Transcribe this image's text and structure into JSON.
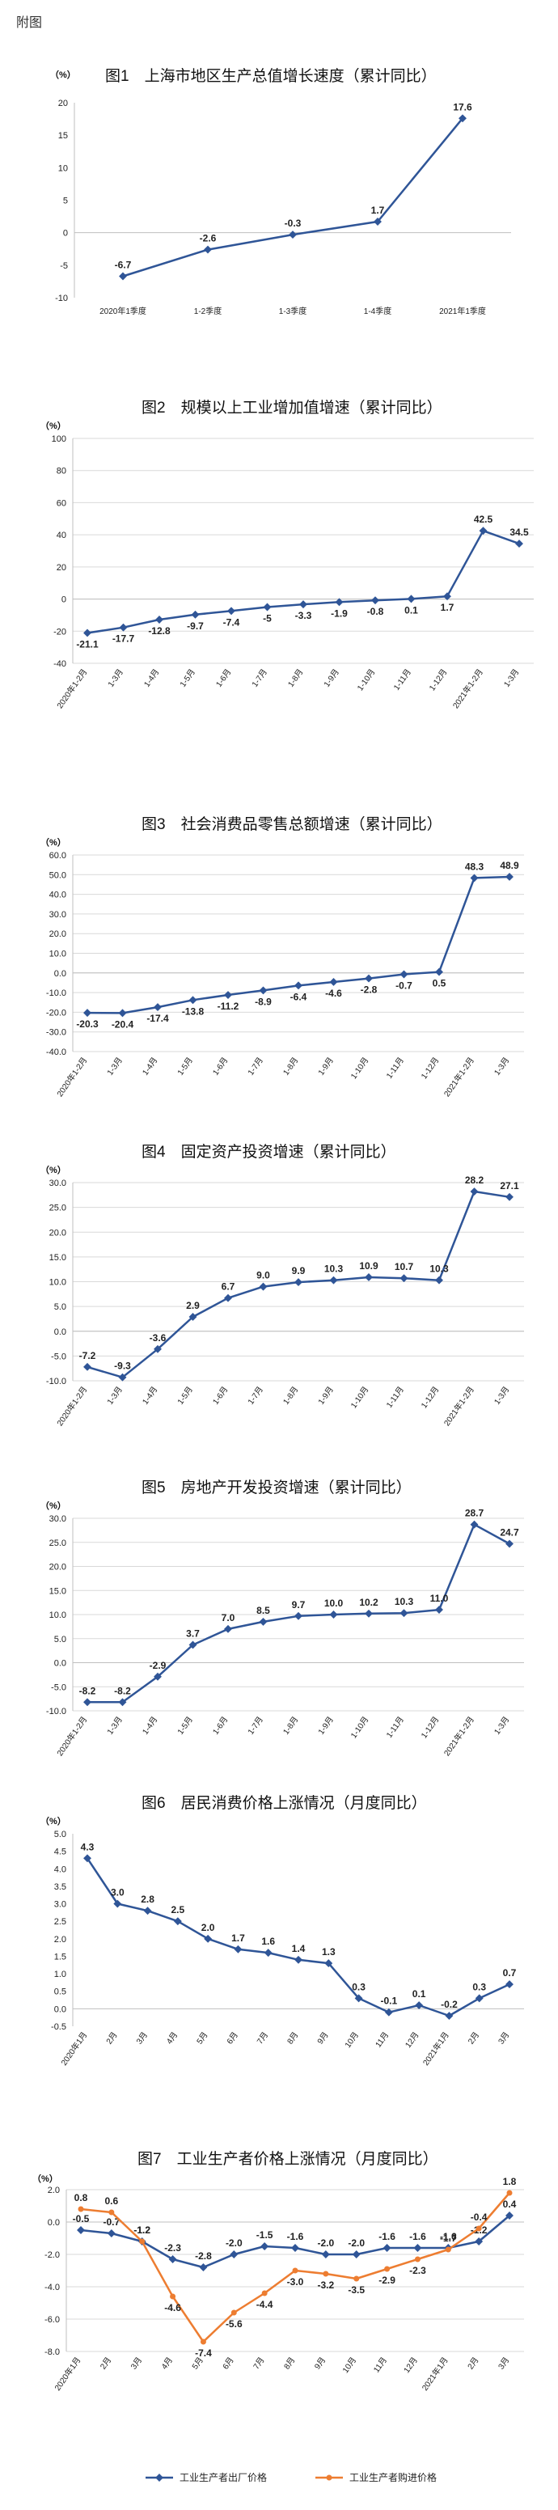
{
  "page_label": "附图",
  "colors": {
    "blue": "#2f5597",
    "orange": "#ed7d31"
  },
  "chart_data": [
    {
      "type": "line",
      "title": "图1　上海市地区生产总值增长速度（累计同比）",
      "unit": "（%）",
      "categories": [
        "2020年1季度",
        "1-2季度",
        "1-3季度",
        "1-4季度",
        "2021年1季度"
      ],
      "series": [
        {
          "values": [
            -6.7,
            -2.6,
            -0.3,
            1.7,
            17.6
          ],
          "labels": [
            "-6.7",
            "-2.6",
            "-0.3",
            "1.7",
            "17.6"
          ],
          "color": "#2f5597"
        }
      ],
      "ylim": [
        -10,
        20
      ],
      "yticks": [
        -10,
        -5,
        0,
        5,
        10,
        15,
        20
      ],
      "rotate_x": false,
      "grid": false
    },
    {
      "type": "line",
      "title": "图2　规模以上工业增加值增速（累计同比）",
      "unit": "（%）",
      "categories": [
        "2020年1-2月",
        "1-3月",
        "1-4月",
        "1-5月",
        "1-6月",
        "1-7月",
        "1-8月",
        "1-9月",
        "1-10月",
        "1-11月",
        "1-12月",
        "2021年1-2月",
        "1-3月"
      ],
      "series": [
        {
          "values": [
            -21.1,
            -17.7,
            -12.8,
            -9.7,
            -7.4,
            -5,
            -3.3,
            -1.9,
            -0.8,
            0.1,
            1.7,
            42.5,
            34.5
          ],
          "labels": [
            "-21.1",
            "-17.7",
            "-12.8",
            "-9.7",
            "-7.4",
            "-5",
            "-3.3",
            "-1.9",
            "-0.8",
            "0.1",
            "1.7",
            "42.5",
            "34.5"
          ],
          "color": "#2f5597"
        }
      ],
      "ylim": [
        -40,
        100
      ],
      "yticks": [
        -40,
        -20,
        0,
        20,
        40,
        60,
        80,
        100
      ],
      "rotate_x": true,
      "grid": true
    },
    {
      "type": "line",
      "title": "图3　社会消费品零售总额增速（累计同比）",
      "unit": "（%）",
      "categories": [
        "2020年1-2月",
        "1-3月",
        "1-4月",
        "1-5月",
        "1-6月",
        "1-7月",
        "1-8月",
        "1-9月",
        "1-10月",
        "1-11月",
        "1-12月",
        "2021年1-2月",
        "1-3月"
      ],
      "series": [
        {
          "values": [
            -20.3,
            -20.4,
            -17.4,
            -13.8,
            -11.2,
            -8.9,
            -6.4,
            -4.6,
            -2.8,
            -0.7,
            0.5,
            48.3,
            48.9
          ],
          "labels": [
            "-20.3",
            "-20.4",
            "-17.4",
            "-13.8",
            "-11.2",
            "-8.9",
            "-6.4",
            "-4.6",
            "-2.8",
            "-0.7",
            "0.5",
            "48.3",
            "48.9"
          ],
          "color": "#2f5597"
        }
      ],
      "ylim": [
        -40,
        60
      ],
      "yticks": [
        -40,
        -30,
        -20,
        -10,
        0,
        10,
        20,
        30,
        40,
        50,
        60
      ],
      "tick_decimals": 1,
      "rotate_x": true,
      "grid": true
    },
    {
      "type": "line",
      "title": "图4　固定资产投资增速（累计同比）",
      "unit": "（%）",
      "categories": [
        "2020年1-2月",
        "1-3月",
        "1-4月",
        "1-5月",
        "1-6月",
        "1-7月",
        "1-8月",
        "1-9月",
        "1-10月",
        "1-11月",
        "1-12月",
        "2021年1-2月",
        "1-3月"
      ],
      "series": [
        {
          "values": [
            -7.2,
            -9.3,
            -3.6,
            2.9,
            6.7,
            9.0,
            9.9,
            10.3,
            10.9,
            10.7,
            10.3,
            28.2,
            27.1
          ],
          "labels": [
            "-7.2",
            "-9.3",
            "-3.6",
            "2.9",
            "6.7",
            "9.0",
            "9.9",
            "10.3",
            "10.9",
            "10.7",
            "10.3",
            "28.2",
            "27.1"
          ],
          "color": "#2f5597"
        }
      ],
      "ylim": [
        -10,
        30
      ],
      "yticks": [
        -10,
        -5,
        0,
        5,
        10,
        15,
        20,
        25,
        30
      ],
      "tick_decimals": 1,
      "rotate_x": true,
      "grid": true
    },
    {
      "type": "line",
      "title": "图5　房地产开发投资增速（累计同比）",
      "unit": "（%）",
      "categories": [
        "2020年1-2月",
        "1-3月",
        "1-4月",
        "1-5月",
        "1-6月",
        "1-7月",
        "1-8月",
        "1-9月",
        "1-10月",
        "1-11月",
        "1-12月",
        "2021年1-2月",
        "1-3月"
      ],
      "series": [
        {
          "values": [
            -8.2,
            -8.2,
            -2.9,
            3.7,
            7.0,
            8.5,
            9.7,
            10.0,
            10.2,
            10.3,
            11.0,
            28.7,
            24.7
          ],
          "labels": [
            "-8.2",
            "-8.2",
            "-2.9",
            "3.7",
            "7.0",
            "8.5",
            "9.7",
            "10.0",
            "10.2",
            "10.3",
            "11.0",
            "28.7",
            "24.7"
          ],
          "color": "#2f5597"
        }
      ],
      "ylim": [
        -10,
        30
      ],
      "yticks": [
        -10,
        -5,
        0,
        5,
        10,
        15,
        20,
        25,
        30
      ],
      "tick_decimals": 1,
      "rotate_x": true,
      "grid": true
    },
    {
      "type": "line",
      "title": "图6　居民消费价格上涨情况（月度同比）",
      "unit": "（%）",
      "categories": [
        "2020年1月",
        "2月",
        "3月",
        "4月",
        "5月",
        "6月",
        "7月",
        "8月",
        "9月",
        "10月",
        "11月",
        "12月",
        "2021年1月",
        "2月",
        "3月"
      ],
      "series": [
        {
          "values": [
            4.3,
            3.0,
            2.8,
            2.5,
            2.0,
            1.7,
            1.6,
            1.4,
            1.3,
            0.3,
            -0.1,
            0.1,
            -0.2,
            0.3,
            0.7
          ],
          "labels": [
            "4.3",
            "3.0",
            "2.8",
            "2.5",
            "2.0",
            "1.7",
            "1.6",
            "1.4",
            "1.3",
            "0.3",
            "-0.1",
            "0.1",
            "-0.2",
            "0.3",
            "0.7"
          ],
          "color": "#2f5597"
        }
      ],
      "ylim": [
        -0.5,
        5.0
      ],
      "yticks": [
        -0.5,
        0.0,
        0.5,
        1.0,
        1.5,
        2.0,
        2.5,
        3.0,
        3.5,
        4.0,
        4.5,
        5.0
      ],
      "tick_decimals": 1,
      "rotate_x": true,
      "grid": false
    },
    {
      "type": "line",
      "title": "图7　工业生产者价格上涨情况（月度同比）",
      "unit": "（%）",
      "categories": [
        "2020年1月",
        "2月",
        "3月",
        "4月",
        "5月",
        "6月",
        "7月",
        "8月",
        "9月",
        "10月",
        "11月",
        "12月",
        "2021年1月",
        "2月",
        "3月"
      ],
      "series": [
        {
          "name": "工业生产者出厂价格",
          "values": [
            -0.5,
            -0.7,
            -1.2,
            -2.3,
            -2.8,
            -2.0,
            -1.5,
            -1.6,
            -2.0,
            -2.0,
            -1.6,
            -1.6,
            -1.6,
            -1.2,
            0.4
          ],
          "labels": [
            "-0.5",
            "-0.7",
            "-1.2",
            "-2.3",
            "-2.8",
            "-2.0",
            "-1.5",
            "-1.6",
            "-2.0",
            "-2.0",
            "-1.6",
            "-1.6",
            "-1.6",
            "-1.2",
            "0.4"
          ],
          "color": "#2f5597"
        },
        {
          "name": "工业生产者购进价格",
          "values": [
            0.8,
            0.6,
            -1.2,
            -4.6,
            -7.4,
            -5.6,
            -4.4,
            -3.0,
            -3.2,
            -3.5,
            -2.9,
            -2.3,
            -1.7,
            -0.4,
            1.8
          ],
          "labels": [
            "0.8",
            "0.6",
            "-1.2",
            "-4.6",
            "-7.4",
            "-5.6",
            "-4.4",
            "-3.0",
            "-3.2",
            "-3.5",
            "-2.9",
            "-2.3",
            "-1.7",
            "-0.4",
            "1.8"
          ],
          "color": "#ed7d31"
        }
      ],
      "ylim": [
        -8,
        2
      ],
      "yticks": [
        -8,
        -6,
        -4,
        -2,
        0,
        2
      ],
      "tick_decimals": 1,
      "rotate_x": true,
      "grid": true,
      "legend": "bottom"
    }
  ]
}
